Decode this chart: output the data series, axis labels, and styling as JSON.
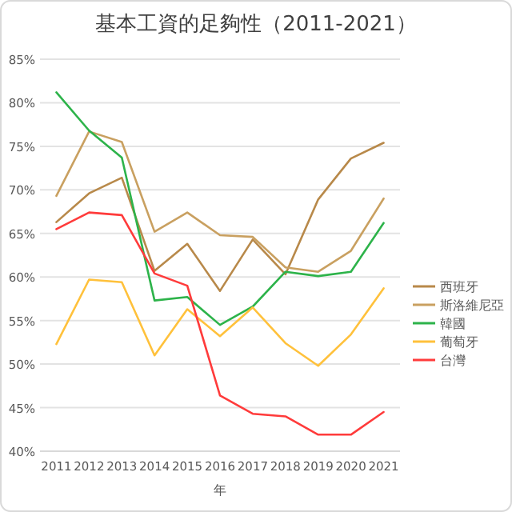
{
  "chart_data": {
    "type": "line",
    "title": "基本工資的足夠性（2011-2021）",
    "xlabel": "年",
    "categories": [
      "2011",
      "2012",
      "2013",
      "2014",
      "2015",
      "2016",
      "2017",
      "2018",
      "2019",
      "2020",
      "2021"
    ],
    "series": [
      {
        "name": "西班牙",
        "color": "#b8894a",
        "values": [
          66.3,
          69.6,
          71.4,
          60.7,
          63.8,
          58.4,
          64.3,
          60.3,
          68.9,
          73.6,
          75.4
        ]
      },
      {
        "name": "斯洛維尼亞",
        "color": "#c9a060",
        "values": [
          69.3,
          76.7,
          75.5,
          65.2,
          67.4,
          64.8,
          64.6,
          61.1,
          60.6,
          63.0,
          69.0
        ]
      },
      {
        "name": "韓國",
        "color": "#2db34a",
        "values": [
          81.2,
          76.8,
          73.7,
          57.3,
          57.7,
          54.5,
          56.6,
          60.6,
          60.1,
          60.6,
          66.2
        ]
      },
      {
        "name": "葡萄牙",
        "color": "#ffc13b",
        "values": [
          52.3,
          59.7,
          59.4,
          51.0,
          56.3,
          53.2,
          56.5,
          52.4,
          49.8,
          53.4,
          58.7
        ]
      },
      {
        "name": "台灣",
        "color": "#ff3b3b",
        "values": [
          65.5,
          67.4,
          67.1,
          60.4,
          59.0,
          46.4,
          44.3,
          44.0,
          41.9,
          41.9,
          44.5
        ]
      }
    ],
    "ylim": [
      40,
      85
    ],
    "yticks": [
      {
        "value": 40,
        "label": "40%"
      },
      {
        "value": 45,
        "label": "45%"
      },
      {
        "value": 50,
        "label": "50%"
      },
      {
        "value": 55,
        "label": "55%"
      },
      {
        "value": 60,
        "label": "60%"
      },
      {
        "value": 65,
        "label": "65%"
      },
      {
        "value": 70,
        "label": "70%"
      },
      {
        "value": 75,
        "label": "75%"
      },
      {
        "value": 80,
        "label": "80%"
      },
      {
        "value": 85,
        "label": "85%"
      }
    ],
    "grid": "y",
    "legend": "right",
    "marker": "none",
    "line_style": "solid"
  }
}
